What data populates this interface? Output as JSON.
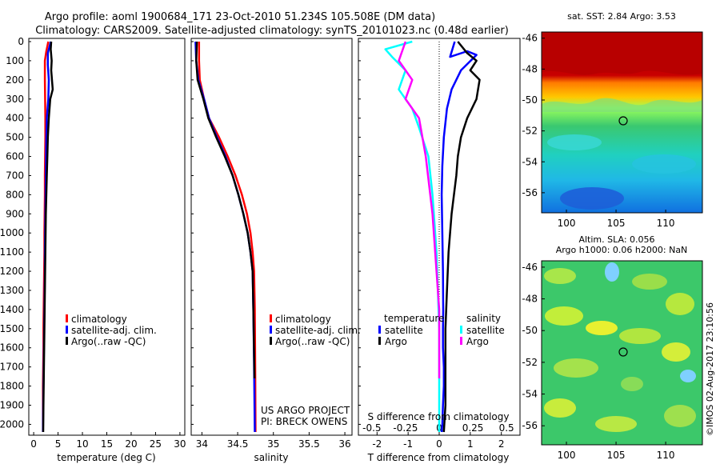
{
  "header": {
    "line1": "Argo profile: aoml 1900684_171 23-Oct-2010 51.234S 105.508E (DM data)",
    "line2": "Climatology: CARS2009. Satellite-adjusted climatology: synTS_20101023.nc (0.48d earlier)"
  },
  "depth_ticks": [
    "0",
    "100",
    "200",
    "300",
    "400",
    "500",
    "600",
    "700",
    "800",
    "900",
    "1000",
    "1100",
    "1200",
    "1300",
    "1400",
    "1500",
    "1600",
    "1700",
    "1800",
    "1900",
    "2000"
  ],
  "colors": {
    "climatology": "#ff0000",
    "satellite": "#0000ff",
    "argo": "#000000",
    "sal_sat": "#00ffff",
    "sal_argo": "#ff00ff"
  },
  "panels": {
    "temperature": {
      "xlabel": "temperature (deg C)",
      "xticks": [
        "0",
        "5",
        "10",
        "15",
        "20",
        "25",
        "30"
      ],
      "legend": [
        "climatology",
        "satellite-adj. clim.",
        "Argo(..raw -QC)"
      ]
    },
    "salinity": {
      "xlabel": "salinity",
      "xticks": [
        "34",
        "34.5",
        "35",
        "35.5",
        "36"
      ],
      "legend": [
        "climatology",
        "satellite-adj. clim.",
        "Argo(..raw -QC)"
      ],
      "credit1": "US ARGO PROJECT",
      "credit2": "PI: BRECK OWENS"
    },
    "difference": {
      "xlabel": "T difference from climatology",
      "top_xlabel": "S difference from climatology",
      "xticks": [
        "-2",
        "-1",
        "0",
        "1",
        "2"
      ],
      "top_xticks": [
        "-0.5",
        "-0.25",
        "0",
        "0.25",
        "0.5"
      ],
      "legend_temp_title": "temperature",
      "legend_sal_title": "salinity",
      "legend_temp": [
        "satellite",
        "Argo"
      ],
      "legend_sal": [
        "satellite",
        "Argo"
      ]
    }
  },
  "maps": {
    "sst": {
      "title": "sat. SST: 2.84 Argo: 3.53",
      "yticks": [
        "-46",
        "-48",
        "-50",
        "-52",
        "-54",
        "-56"
      ],
      "xticks": [
        "100",
        "105",
        "110"
      ]
    },
    "sla": {
      "title1": "Altim. SLA: 0.056",
      "title2": "Argo h1000: 0.06 h2000: NaN",
      "yticks": [
        "-46",
        "-48",
        "-50",
        "-52",
        "-54",
        "-56"
      ],
      "xticks": [
        "100",
        "105",
        "110"
      ]
    },
    "watermark": "©IMOS 02-Aug-2017 23:10:56"
  },
  "chart_data": [
    {
      "type": "line",
      "title": "",
      "xlabel": "temperature (deg C)",
      "ylabel": "",
      "xlim": [
        -1,
        31
      ],
      "ylim": [
        2050,
        -5
      ],
      "series": [
        {
          "name": "climatology",
          "color": "#ff0000",
          "x": [
            3.0,
            2.6,
            2.3,
            2.3,
            2.3,
            2.35,
            2.4,
            2.4,
            2.35,
            2.3,
            2.3,
            2.25,
            2.2,
            2.2,
            2.15,
            2.1,
            2.05,
            2.0,
            2.0,
            1.95,
            1.9,
            1.9
          ],
          "y": [
            0,
            50,
            100,
            150,
            200,
            300,
            400,
            500,
            600,
            700,
            800,
            900,
            1000,
            1100,
            1200,
            1300,
            1400,
            1500,
            1600,
            1700,
            1800,
            2040
          ]
        },
        {
          "name": "satellite-adj. clim.",
          "color": "#0000ff",
          "x": [
            3.5,
            2.9,
            2.9,
            3.1,
            3.0,
            2.7,
            2.6,
            2.55,
            2.5,
            2.45,
            2.4,
            2.35,
            2.3,
            2.3,
            2.25,
            2.2,
            2.15,
            2.1,
            2.05,
            2.0,
            1.95,
            1.9
          ],
          "y": [
            0,
            60,
            120,
            200,
            300,
            400,
            500,
            600,
            700,
            800,
            900,
            1000,
            1100,
            1200,
            1300,
            1400,
            1500,
            1600,
            1700,
            1800,
            1900,
            2040
          ]
        },
        {
          "name": "Argo(..raw -QC)",
          "color": "#000000",
          "x": [
            3.6,
            3.5,
            3.7,
            3.6,
            3.9,
            3.4,
            3.1,
            2.9,
            2.8,
            2.7,
            2.6,
            2.5,
            2.45,
            2.4,
            2.35,
            2.3,
            2.2,
            2.1,
            2.05,
            2.0,
            1.95
          ],
          "y": [
            0,
            40,
            100,
            150,
            250,
            300,
            400,
            500,
            600,
            700,
            800,
            900,
            1000,
            1100,
            1200,
            1300,
            1500,
            1700,
            1800,
            1900,
            2040
          ]
        }
      ]
    },
    {
      "type": "line",
      "title": "",
      "xlabel": "salinity",
      "ylabel": "",
      "xlim": [
        33.85,
        36.1
      ],
      "ylim": [
        2050,
        -5
      ],
      "series": [
        {
          "name": "climatology",
          "color": "#ff0000",
          "x": [
            33.96,
            33.96,
            33.97,
            34.03,
            34.1,
            34.24,
            34.36,
            34.47,
            34.56,
            34.63,
            34.68,
            34.71,
            34.73,
            34.74,
            34.745,
            34.75
          ],
          "y": [
            0,
            100,
            200,
            300,
            400,
            500,
            600,
            700,
            800,
            900,
            1000,
            1100,
            1200,
            1400,
            1700,
            2040
          ]
        },
        {
          "name": "satellite-adj. clim.",
          "color": "#0000ff",
          "x": [
            33.91,
            33.92,
            33.95,
            34.03,
            34.1,
            34.21,
            34.33,
            34.43,
            34.51,
            34.58,
            34.64,
            34.68,
            34.71,
            34.72,
            34.73,
            34.74
          ],
          "y": [
            0,
            100,
            200,
            300,
            400,
            500,
            600,
            700,
            800,
            900,
            1000,
            1100,
            1200,
            1400,
            1700,
            2040
          ]
        },
        {
          "name": "Argo(..raw -QC)",
          "color": "#000000",
          "x": [
            33.93,
            33.92,
            33.94,
            34.02,
            34.09,
            34.2,
            34.32,
            34.43,
            34.51,
            34.58,
            34.64,
            34.68,
            34.71,
            34.72,
            34.735
          ],
          "y": [
            0,
            100,
            200,
            300,
            400,
            500,
            600,
            700,
            800,
            900,
            1000,
            1100,
            1200,
            1400,
            1760
          ]
        }
      ]
    },
    {
      "type": "line",
      "title": "",
      "xlabel": "T difference from climatology",
      "ylabel": "",
      "xlim": [
        -2.6,
        2.6
      ],
      "ylim": [
        2050,
        -5
      ],
      "series": [
        {
          "name": "satellite",
          "color": "#0000ff",
          "variable": "temperature",
          "x": [
            0.5,
            0.35,
            0.9,
            1.2,
            0.7,
            0.4,
            0.25,
            0.15,
            0.1,
            0.08,
            0.1,
            0.12,
            0.13,
            0.12,
            0.12,
            0.15,
            0.15,
            0.12,
            0.1,
            0.08
          ],
          "y": [
            0,
            80,
            50,
            70,
            150,
            250,
            350,
            500,
            650,
            800,
            1000,
            1200,
            1400,
            1500,
            1600,
            1700,
            1800,
            1900,
            2000,
            2040
          ]
        },
        {
          "name": "Argo",
          "color": "#000000",
          "variable": "temperature",
          "x": [
            0.6,
            0.9,
            1.2,
            1.0,
            1.3,
            1.2,
            0.9,
            0.7,
            0.6,
            0.55,
            0.4,
            0.3,
            0.25,
            0.2,
            0.2,
            0.2,
            0.15
          ],
          "y": [
            0,
            60,
            100,
            150,
            200,
            300,
            400,
            500,
            600,
            700,
            900,
            1100,
            1300,
            1500,
            1700,
            1900,
            2040
          ]
        },
        {
          "name": "satellite",
          "color": "#00ffff",
          "variable": "salinity",
          "x": [
            -0.2,
            -0.4,
            -0.35,
            -0.25,
            -0.3,
            -0.2,
            -0.15,
            -0.08,
            -0.05,
            -0.02,
            0.0,
            0.0
          ],
          "y": [
            0,
            40,
            80,
            150,
            250,
            350,
            450,
            600,
            800,
            1100,
            1500,
            2040
          ]
        },
        {
          "name": "Argo",
          "color": "#ff00ff",
          "variable": "salinity",
          "x": [
            -0.25,
            -0.3,
            -0.2,
            -0.25,
            -0.15,
            -0.1,
            -0.05,
            0.0,
            0.0
          ],
          "y": [
            0,
            100,
            200,
            300,
            400,
            600,
            900,
            1400,
            1760
          ]
        }
      ]
    }
  ]
}
